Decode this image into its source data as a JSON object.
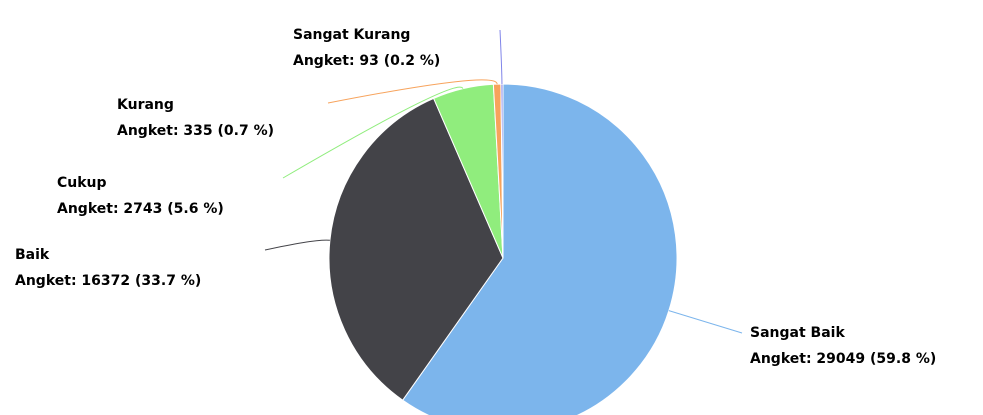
{
  "chart_data": {
    "type": "pie",
    "categories": [
      "Sangat Baik",
      "Baik",
      "Cukup",
      "Kurang",
      "Sangat Kurang"
    ],
    "values": [
      29049,
      16372,
      2743,
      335,
      93
    ],
    "value_labels": [
      "Angket: 29049 (59.8 %)",
      "Angket: 16372 (33.7 %)",
      "Angket: 2743 (5.6 %)",
      "Angket: 335 (0.7 %)",
      "Angket: 93 (0.2 %)"
    ],
    "colors": [
      "#7cb5ec",
      "#434348",
      "#90ed7d",
      "#f7a35c",
      "#8085e9"
    ]
  }
}
